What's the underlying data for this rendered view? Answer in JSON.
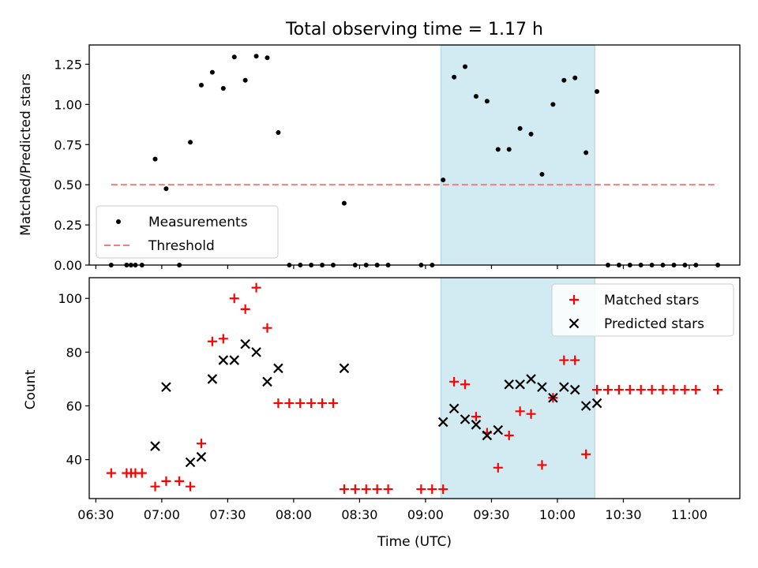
{
  "title": "Total observing time = 1.17 h",
  "colors": {
    "measurement": "#000000",
    "threshold": "#f08080",
    "matched": "#ff0000",
    "predicted": "#000000",
    "highlight": "#add8e6"
  },
  "chart_data": [
    {
      "type": "scatter",
      "ylabel": "Matched/Predicted stars",
      "xlabel": "",
      "xlim": [
        "06:27",
        "11:23"
      ],
      "ylim": [
        0,
        1.37
      ],
      "yticks": [
        0.0,
        0.25,
        0.5,
        0.75,
        1.0,
        1.25
      ],
      "ytick_labels": [
        "0.00",
        "0.25",
        "0.50",
        "0.75",
        "1.00",
        "1.25"
      ],
      "highlight_span": [
        "09:07",
        "10:17"
      ],
      "legend_position": "lower-left",
      "legend": [
        "Measurements",
        "Threshold"
      ],
      "series": [
        {
          "name": "Measurements",
          "marker": "dot",
          "points": [
            [
              "06:37",
              0
            ],
            [
              "06:44",
              0
            ],
            [
              "06:46",
              0
            ],
            [
              "06:48",
              0
            ],
            [
              "06:51",
              0
            ],
            [
              "06:57",
              0.66
            ],
            [
              "07:02",
              0.475
            ],
            [
              "07:08",
              0
            ],
            [
              "07:13",
              0.765
            ],
            [
              "07:18",
              1.12
            ],
            [
              "07:23",
              1.2
            ],
            [
              "07:28",
              1.1
            ],
            [
              "07:33",
              1.295
            ],
            [
              "07:38",
              1.15
            ],
            [
              "07:43",
              1.3
            ],
            [
              "07:48",
              1.29
            ],
            [
              "07:53",
              0.825
            ],
            [
              "07:58",
              0
            ],
            [
              "08:03",
              0
            ],
            [
              "08:08",
              0
            ],
            [
              "08:13",
              0
            ],
            [
              "08:18",
              0
            ],
            [
              "08:23",
              0.385
            ],
            [
              "08:28",
              0
            ],
            [
              "08:33",
              0
            ],
            [
              "08:38",
              0
            ],
            [
              "08:43",
              0
            ],
            [
              "08:58",
              0
            ],
            [
              "09:03",
              0
            ],
            [
              "09:08",
              0.53
            ],
            [
              "09:13",
              1.17
            ],
            [
              "09:18",
              1.235
            ],
            [
              "09:23",
              1.05
            ],
            [
              "09:28",
              1.02
            ],
            [
              "09:33",
              0.72
            ],
            [
              "09:38",
              0.72
            ],
            [
              "09:43",
              0.85
            ],
            [
              "09:48",
              0.815
            ],
            [
              "09:53",
              0.565
            ],
            [
              "09:58",
              1.0
            ],
            [
              "10:03",
              1.15
            ],
            [
              "10:08",
              1.165
            ],
            [
              "10:13",
              0.7
            ],
            [
              "10:18",
              1.08
            ],
            [
              "10:23",
              0
            ],
            [
              "10:28",
              0
            ],
            [
              "10:33",
              0
            ],
            [
              "10:38",
              0
            ],
            [
              "10:43",
              0
            ],
            [
              "10:48",
              0
            ],
            [
              "10:53",
              0
            ],
            [
              "10:58",
              0
            ],
            [
              "11:03",
              0
            ],
            [
              "11:13",
              0
            ]
          ]
        },
        {
          "name": "Threshold",
          "style": "dashed",
          "points": [
            [
              "06:37",
              0.5
            ],
            [
              "11:13",
              0.5
            ]
          ]
        }
      ]
    },
    {
      "type": "scatter",
      "ylabel": "Count",
      "xlabel": "Time (UTC)",
      "xlim": [
        "06:27",
        "11:23"
      ],
      "ylim": [
        25.5,
        107.7
      ],
      "yticks": [
        40,
        60,
        80,
        100
      ],
      "xticks": [
        "06:30",
        "07:00",
        "07:30",
        "08:00",
        "08:30",
        "09:00",
        "09:30",
        "10:00",
        "10:30",
        "11:00"
      ],
      "highlight_span": [
        "09:07",
        "10:17"
      ],
      "legend_position": "top-right",
      "legend": [
        "Matched stars",
        "Predicted stars"
      ],
      "series": [
        {
          "name": "Matched stars",
          "marker": "plus",
          "points": [
            [
              "06:37",
              35
            ],
            [
              "06:44",
              35
            ],
            [
              "06:46",
              35
            ],
            [
              "06:48",
              35
            ],
            [
              "06:51",
              35
            ],
            [
              "06:57",
              30
            ],
            [
              "07:02",
              32
            ],
            [
              "07:08",
              32
            ],
            [
              "07:13",
              30
            ],
            [
              "07:18",
              46
            ],
            [
              "07:23",
              84
            ],
            [
              "07:28",
              85
            ],
            [
              "07:33",
              100
            ],
            [
              "07:38",
              96
            ],
            [
              "07:43",
              104
            ],
            [
              "07:48",
              89
            ],
            [
              "07:53",
              61
            ],
            [
              "07:58",
              61
            ],
            [
              "08:03",
              61
            ],
            [
              "08:08",
              61
            ],
            [
              "08:13",
              61
            ],
            [
              "08:18",
              61
            ],
            [
              "08:23",
              29
            ],
            [
              "08:28",
              29
            ],
            [
              "08:33",
              29
            ],
            [
              "08:38",
              29
            ],
            [
              "08:43",
              29
            ],
            [
              "08:58",
              29
            ],
            [
              "09:03",
              29
            ],
            [
              "09:08",
              29
            ],
            [
              "09:13",
              69
            ],
            [
              "09:18",
              68
            ],
            [
              "09:23",
              56
            ],
            [
              "09:28",
              50
            ],
            [
              "09:33",
              37
            ],
            [
              "09:38",
              49
            ],
            [
              "09:43",
              58
            ],
            [
              "09:48",
              57
            ],
            [
              "09:53",
              38
            ],
            [
              "09:58",
              63
            ],
            [
              "10:03",
              77
            ],
            [
              "10:08",
              77
            ],
            [
              "10:13",
              42
            ],
            [
              "10:18",
              66
            ],
            [
              "10:23",
              66
            ],
            [
              "10:28",
              66
            ],
            [
              "10:33",
              66
            ],
            [
              "10:38",
              66
            ],
            [
              "10:43",
              66
            ],
            [
              "10:48",
              66
            ],
            [
              "10:53",
              66
            ],
            [
              "10:58",
              66
            ],
            [
              "11:03",
              66
            ],
            [
              "11:13",
              66
            ]
          ]
        },
        {
          "name": "Predicted stars",
          "marker": "x",
          "points": [
            [
              "06:57",
              45
            ],
            [
              "07:02",
              67
            ],
            [
              "07:13",
              39
            ],
            [
              "07:18",
              41
            ],
            [
              "07:23",
              70
            ],
            [
              "07:28",
              77
            ],
            [
              "07:33",
              77
            ],
            [
              "07:38",
              83
            ],
            [
              "07:43",
              80
            ],
            [
              "07:48",
              69
            ],
            [
              "07:53",
              74
            ],
            [
              "08:23",
              74
            ],
            [
              "09:08",
              54
            ],
            [
              "09:13",
              59
            ],
            [
              "09:18",
              55
            ],
            [
              "09:23",
              53
            ],
            [
              "09:28",
              49
            ],
            [
              "09:33",
              51
            ],
            [
              "09:38",
              68
            ],
            [
              "09:43",
              68
            ],
            [
              "09:48",
              70
            ],
            [
              "09:53",
              67
            ],
            [
              "09:58",
              63
            ],
            [
              "10:03",
              67
            ],
            [
              "10:08",
              66
            ],
            [
              "10:13",
              60
            ],
            [
              "10:18",
              61
            ]
          ]
        }
      ]
    }
  ]
}
